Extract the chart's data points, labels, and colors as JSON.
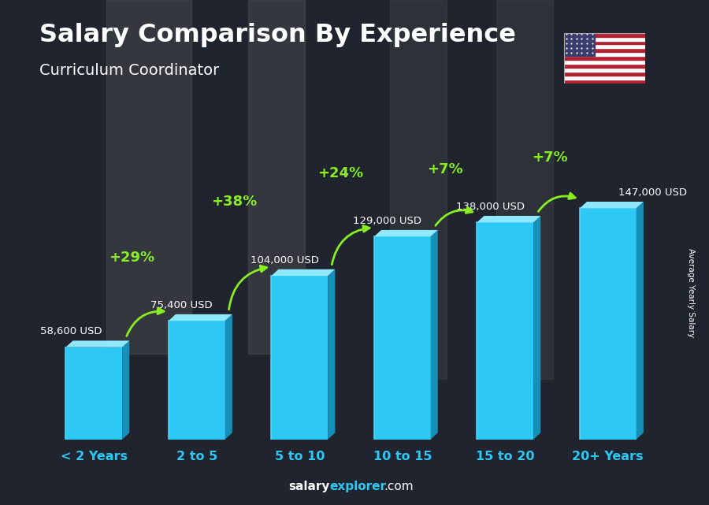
{
  "title": "Salary Comparison By Experience",
  "subtitle": "Curriculum Coordinator",
  "categories": [
    "< 2 Years",
    "2 to 5",
    "5 to 10",
    "10 to 15",
    "15 to 20",
    "20+ Years"
  ],
  "values": [
    58600,
    75400,
    104000,
    129000,
    138000,
    147000
  ],
  "value_labels": [
    "58,600 USD",
    "75,400 USD",
    "104,000 USD",
    "129,000 USD",
    "138,000 USD",
    "147,000 USD"
  ],
  "pct_labels": [
    "+29%",
    "+38%",
    "+24%",
    "+7%",
    "+7%"
  ],
  "bar_face_color": "#2ec8f5",
  "bar_left_color": "#1aa8d4",
  "bar_top_color": "#90e8ff",
  "bar_right_color": "#1590b8",
  "title_color": "#ffffff",
  "subtitle_color": "#ffffff",
  "value_label_color": "#ffffff",
  "pct_color": "#88ee22",
  "xlabel_color": "#2ec8f5",
  "ylabel_text": "Average Yearly Salary",
  "footer_salary_color": "#ffffff",
  "footer_explorer_color": "#2ec8f5",
  "footer_com_color": "#ffffff",
  "bg_dark": "#1a1f2e"
}
